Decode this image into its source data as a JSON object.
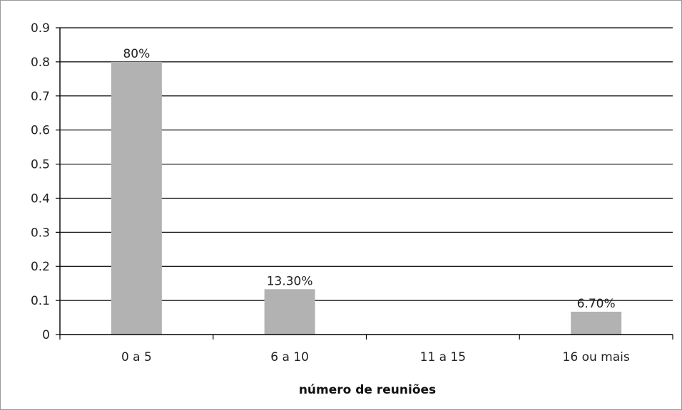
{
  "chart_data": {
    "type": "bar",
    "categories": [
      "0 a 5",
      "6 a 10",
      "11 a 15",
      "16 ou mais"
    ],
    "values": [
      0.8,
      0.133,
      0,
      0.067
    ],
    "data_labels": [
      "80%",
      "13.30%",
      "",
      "6.70%"
    ],
    "xlabel": "número de reuniões",
    "ylabel": "",
    "title": "",
    "ylim": [
      0,
      0.9
    ],
    "yticks": [
      0,
      0.1,
      0.2,
      0.3,
      0.4,
      0.5,
      0.6,
      0.7,
      0.8,
      0.9
    ],
    "ytick_labels": [
      "0",
      "0.1",
      "0.2",
      "0.3",
      "0.4",
      "0.5",
      "0.6",
      "0.7",
      "0.8",
      "0.9"
    ],
    "grid": true,
    "legend": false,
    "colors": {
      "bar": "#b2b2b2",
      "grid": "#000000",
      "axis": "#000000"
    }
  }
}
